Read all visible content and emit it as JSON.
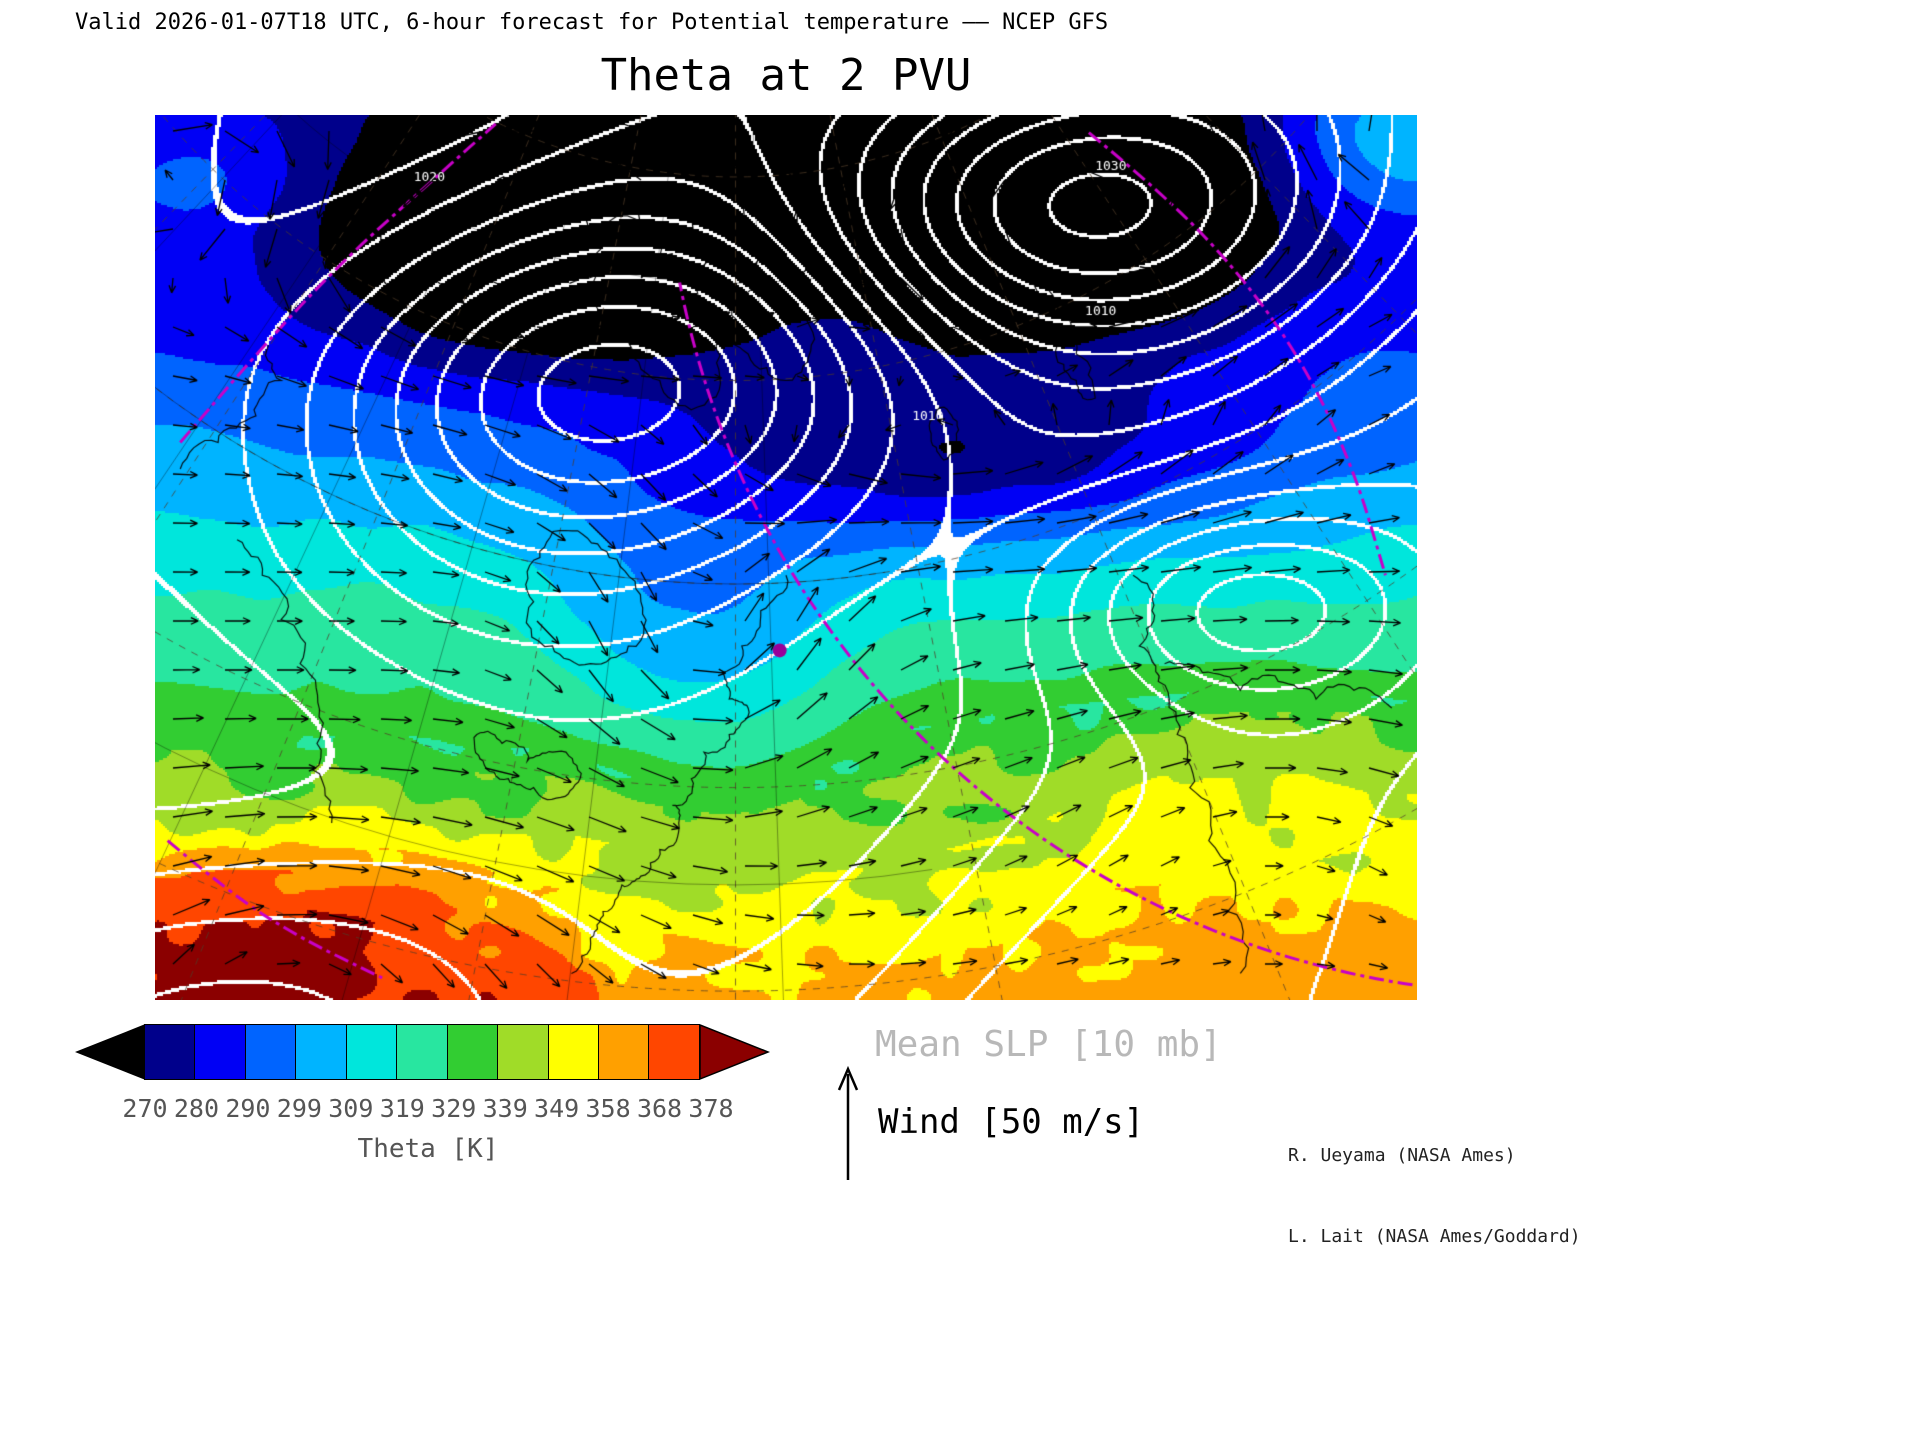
{
  "header": {
    "valid_line": "Valid 2026-01-07T18 UTC, 6-hour forecast for Potential temperature —— NCEP GFS"
  },
  "chart_data": {
    "type": "heatmap",
    "title": "Theta at 2 PVU",
    "variable": "Potential temperature",
    "surface": "2 PVU",
    "model": "NCEP GFS",
    "valid_time": "2026-01-07T18 UTC",
    "forecast": "6-hour forecast",
    "colorbar": {
      "label": "Theta [K]",
      "units": "K",
      "ticks": [
        270,
        280,
        290,
        299,
        309,
        319,
        329,
        339,
        349,
        358,
        368,
        378
      ],
      "cell_colors": [
        "#00008B",
        "#0000F5",
        "#0064FF",
        "#00B4FF",
        "#00E6DC",
        "#28E6A0",
        "#32CD32",
        "#A0DC28",
        "#FFFF00",
        "#FFA000",
        "#FF4600"
      ],
      "under_color": "#000000",
      "over_color": "#8B0000"
    },
    "overlays": [
      {
        "name": "Mean SLP",
        "contour_interval": "10 mb",
        "style": "white contours"
      },
      {
        "name": "Wind",
        "reference_vector": "50 m/s",
        "style": "black arrows"
      }
    ],
    "overlay_colors": {
      "coastlines": "#000000",
      "graticule": "rgba(80,60,40,0.75)",
      "slp_contours": "#ffffff",
      "magenta_dashdot": "#C800C8",
      "station_dot": "#990099",
      "wind_arrows": "#000000"
    },
    "slp_labels": [
      {
        "text": "1030",
        "x": 0.745,
        "y": 0.062
      },
      {
        "text": "1010",
        "x": 0.737,
        "y": 0.226
      },
      {
        "text": "1010",
        "x": 0.6,
        "y": 0.345
      },
      {
        "text": "1020",
        "x": 0.205,
        "y": 0.075
      }
    ]
  },
  "legend": {
    "slp_label": "Mean SLP [10 mb]",
    "wind_label": "Wind [50 m/s]"
  },
  "credits": [
    "R. Ueyama (NASA Ames)",
    "L. Lait (NASA Ames/Goddard)"
  ]
}
